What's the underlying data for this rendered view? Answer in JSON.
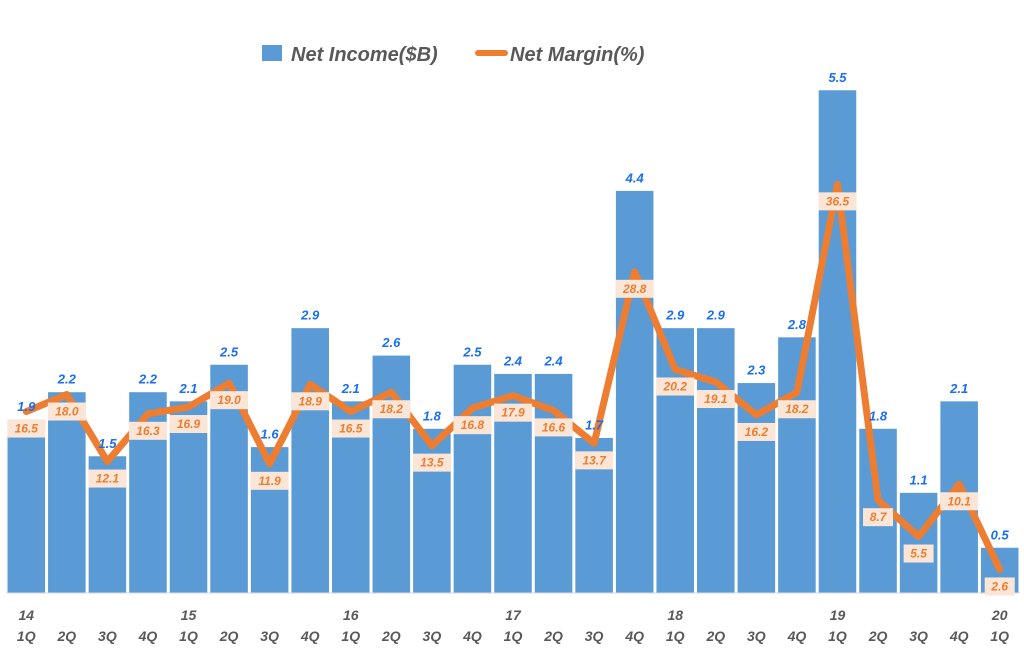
{
  "chart_data": {
    "type": "bar+line",
    "title": "",
    "legend": {
      "placement": "top-center",
      "entries": [
        "Net Income($B)",
        "Net Margin(%)"
      ]
    },
    "colors": {
      "bar": "#5b9bd5",
      "line": "#ed7d31",
      "bar_label": "#1a6ff0",
      "line_label_bg": "#fbe5d6"
    },
    "grid": false,
    "categories": [
      {
        "year": "14",
        "q": "1Q"
      },
      {
        "year": "",
        "q": "2Q"
      },
      {
        "year": "",
        "q": "3Q"
      },
      {
        "year": "",
        "q": "4Q"
      },
      {
        "year": "15",
        "q": "1Q"
      },
      {
        "year": "",
        "q": "2Q"
      },
      {
        "year": "",
        "q": "3Q"
      },
      {
        "year": "",
        "q": "4Q"
      },
      {
        "year": "16",
        "q": "1Q"
      },
      {
        "year": "",
        "q": "2Q"
      },
      {
        "year": "",
        "q": "3Q"
      },
      {
        "year": "",
        "q": "4Q"
      },
      {
        "year": "17",
        "q": "1Q"
      },
      {
        "year": "",
        "q": "2Q"
      },
      {
        "year": "",
        "q": "3Q"
      },
      {
        "year": "",
        "q": "4Q"
      },
      {
        "year": "18",
        "q": "1Q"
      },
      {
        "year": "",
        "q": "2Q"
      },
      {
        "year": "",
        "q": "3Q"
      },
      {
        "year": "",
        "q": "4Q"
      },
      {
        "year": "19",
        "q": "1Q"
      },
      {
        "year": "",
        "q": "2Q"
      },
      {
        "year": "",
        "q": "3Q"
      },
      {
        "year": "",
        "q": "4Q"
      },
      {
        "year": "20",
        "q": "1Q"
      }
    ],
    "series": [
      {
        "name": "Net Income($B)",
        "type": "bar",
        "values": [
          1.9,
          2.2,
          1.5,
          2.2,
          2.1,
          2.5,
          1.6,
          2.9,
          2.1,
          2.6,
          1.8,
          2.5,
          2.4,
          2.4,
          1.7,
          4.4,
          2.9,
          2.9,
          2.3,
          2.8,
          5.5,
          1.8,
          1.1,
          2.1,
          0.5
        ],
        "labels": [
          "1.9",
          "2.2",
          "1.5",
          "2.2",
          "2.1",
          "2.5",
          "1.6",
          "2.9",
          "2.1",
          "2.6",
          "1.8",
          "2.5",
          "2.4",
          "2.4",
          "1.7",
          "4.4",
          "2.9",
          "2.9",
          "2.3",
          "2.8",
          "5.5",
          "1.8",
          "1.1",
          "2.1",
          "0.5"
        ]
      },
      {
        "name": "Net Margin(%)",
        "type": "line",
        "values": [
          16.5,
          18.0,
          12.1,
          16.3,
          16.9,
          19.0,
          11.9,
          18.9,
          16.5,
          18.2,
          13.5,
          16.8,
          17.9,
          16.6,
          13.7,
          28.8,
          20.2,
          19.1,
          16.2,
          18.2,
          36.5,
          8.7,
          5.5,
          10.1,
          2.6
        ],
        "labels": [
          "16.5",
          "18.0",
          "12.1",
          "16.3",
          "16.9",
          "19.0",
          "11.9",
          "18.9",
          "16.5",
          "18.2",
          "13.5",
          "16.8",
          "17.9",
          "16.6",
          "13.7",
          "28.8",
          "20.2",
          "19.1",
          "16.2",
          "18.2",
          "36.5",
          "8.7",
          "5.5",
          "10.1",
          "2.6"
        ]
      }
    ]
  }
}
